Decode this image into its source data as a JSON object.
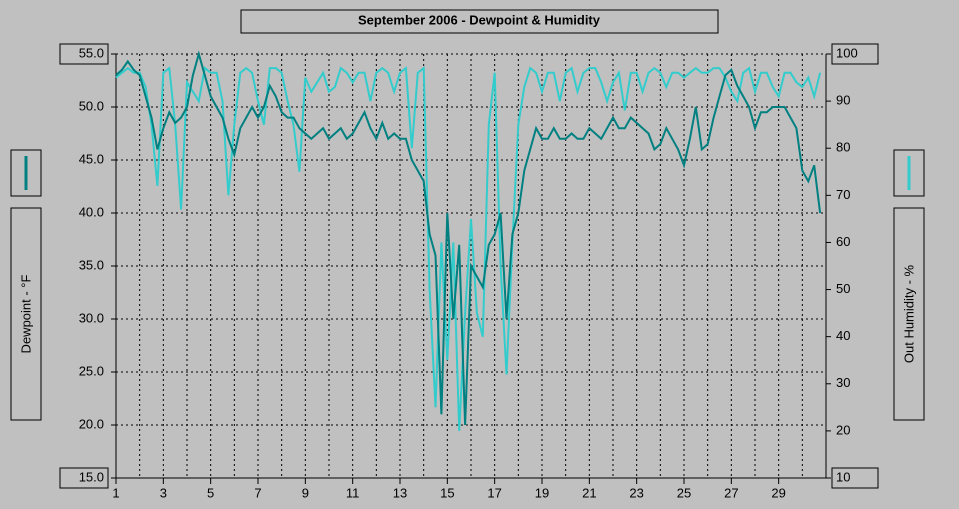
{
  "chart_data": {
    "type": "line",
    "title": "September 2006 - Dewpoint & Humidity",
    "ylabel": "Dewpoint - °F",
    "y2label": "Out Humidity - %",
    "grid": true,
    "x": [
      1,
      1.25,
      1.5,
      1.75,
      2,
      2.25,
      2.5,
      2.75,
      3,
      3.25,
      3.5,
      3.75,
      4,
      4.25,
      4.5,
      4.75,
      5,
      5.25,
      5.5,
      5.75,
      6,
      6.25,
      6.5,
      6.75,
      7,
      7.25,
      7.5,
      7.75,
      8,
      8.25,
      8.5,
      8.75,
      9,
      9.25,
      9.5,
      9.75,
      10,
      10.25,
      10.5,
      10.75,
      11,
      11.25,
      11.5,
      11.75,
      12,
      12.25,
      12.5,
      12.75,
      13,
      13.25,
      13.5,
      13.75,
      14,
      14.25,
      14.5,
      14.75,
      15,
      15.25,
      15.5,
      15.75,
      16,
      16.25,
      16.5,
      16.75,
      17,
      17.25,
      17.5,
      17.75,
      18,
      18.25,
      18.5,
      18.75,
      19,
      19.25,
      19.5,
      19.75,
      20,
      20.25,
      20.5,
      20.75,
      21,
      21.25,
      21.5,
      21.75,
      22,
      22.25,
      22.5,
      22.75,
      23,
      23.25,
      23.5,
      23.75,
      24,
      24.25,
      24.5,
      24.75,
      25,
      25.25,
      25.5,
      25.75,
      26,
      26.25,
      26.5,
      26.75,
      27,
      27.25,
      27.5,
      27.75,
      28,
      28.25,
      28.5,
      28.75,
      29,
      29.25,
      29.5,
      29.75,
      30,
      30.25,
      30.5,
      30.75
    ],
    "series": [
      {
        "color": "#008080",
        "axis": "y",
        "values": [
          53,
          53.5,
          54.3,
          53.5,
          53,
          51,
          49,
          46,
          48,
          49.5,
          48.5,
          49,
          50,
          53,
          55,
          53,
          51,
          50,
          49,
          47,
          45.5,
          48,
          49,
          50,
          49,
          50,
          52,
          51,
          49.5,
          49,
          49,
          48,
          47.5,
          47,
          47.5,
          48,
          47,
          47.5,
          48,
          47,
          47.5,
          48.5,
          49.5,
          48,
          47,
          48.5,
          47,
          47.5,
          47,
          47,
          45,
          44,
          43,
          38,
          36,
          21,
          40,
          30,
          37,
          20,
          35,
          34,
          33,
          37,
          38,
          40,
          30,
          38,
          40,
          44,
          46,
          48,
          47,
          47,
          48,
          47,
          47,
          47.5,
          47,
          47,
          48,
          47.5,
          47,
          48,
          49,
          48,
          48,
          49,
          48.5,
          48,
          47.5,
          46,
          46.5,
          48,
          47,
          46,
          44.5,
          47,
          50,
          46,
          46.5,
          49,
          51,
          53,
          53.5,
          52,
          51,
          50,
          48,
          49.5,
          49.5,
          50,
          50,
          50,
          49,
          48,
          44,
          43,
          44.5,
          40
        ]
      },
      {
        "color": "#33cccc",
        "axis": "y2",
        "values": [
          95,
          96,
          97,
          96,
          96,
          93,
          85,
          72,
          96,
          97,
          85,
          67,
          94,
          92,
          90,
          97,
          96,
          96,
          90,
          70,
          85,
          96,
          97,
          96,
          90,
          85,
          97,
          97,
          96,
          90,
          85,
          75,
          95,
          92,
          94,
          96,
          92,
          93,
          97,
          96,
          94,
          96,
          96,
          90,
          96,
          97,
          96,
          92,
          96,
          97,
          80,
          96,
          97,
          50,
          25,
          60,
          35,
          60,
          20,
          45,
          65,
          45,
          40,
          85,
          96,
          55,
          32,
          60,
          85,
          93,
          97,
          96,
          92,
          96,
          96,
          90,
          96,
          97,
          92,
          96,
          97,
          97,
          94,
          90,
          94,
          96,
          88,
          96,
          96,
          92,
          96,
          97,
          96,
          93,
          96,
          96,
          95,
          96,
          97,
          96,
          96,
          97,
          97,
          95,
          92,
          90,
          96,
          97,
          92,
          96,
          96,
          93,
          91,
          96,
          96,
          94,
          93,
          95,
          91,
          96
        ]
      }
    ],
    "xlim": [
      1,
      31
    ],
    "xticks": [
      1,
      3,
      5,
      7,
      9,
      11,
      13,
      15,
      17,
      19,
      21,
      23,
      25,
      27,
      29
    ],
    "ylim": [
      15,
      55
    ],
    "yticks": [
      {
        "value": 15,
        "label": "15.0"
      },
      {
        "value": 20,
        "label": "20.0"
      },
      {
        "value": 25,
        "label": "25.0"
      },
      {
        "value": 30,
        "label": "30.0"
      },
      {
        "value": 35,
        "label": "35.0"
      },
      {
        "value": 40,
        "label": "40.0"
      },
      {
        "value": 45,
        "label": "45.0"
      },
      {
        "value": 50,
        "label": "50.0"
      },
      {
        "value": 55,
        "label": "55.0"
      }
    ],
    "y2lim": [
      10,
      100
    ],
    "y2ticks": [
      10,
      20,
      30,
      40,
      50,
      60,
      70,
      80,
      90,
      100
    ]
  }
}
